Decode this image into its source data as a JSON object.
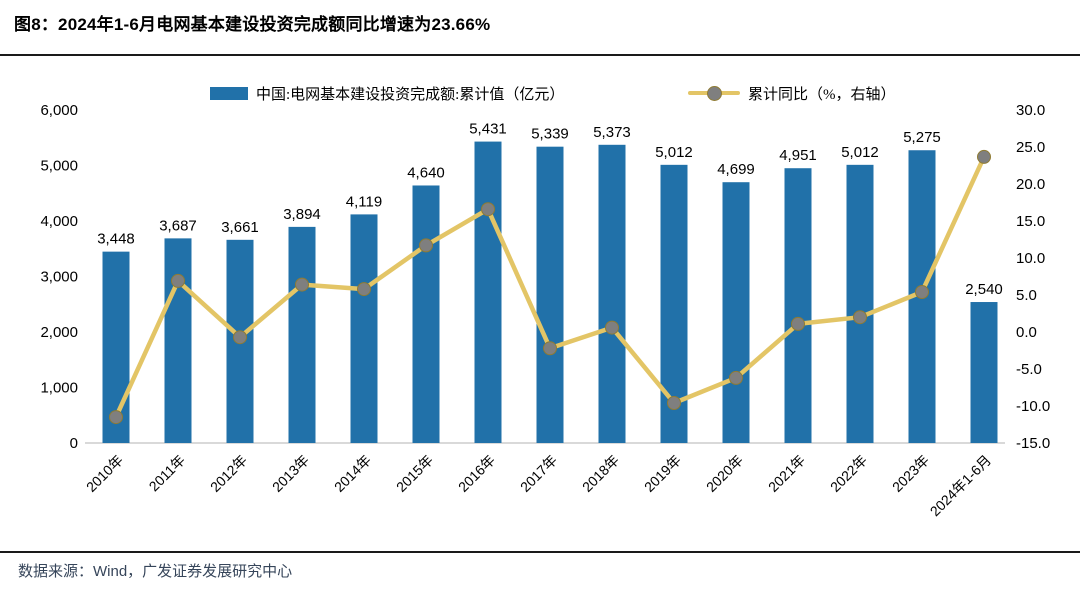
{
  "header": {
    "title": "图8：2024年1-6月电网基本建设投资完成额同比增速为23.66%"
  },
  "legend": {
    "bar_label": "中国:电网基本建设投资完成额:累计值（亿元）",
    "line_label": "累计同比（%，右轴）"
  },
  "footer": {
    "text": "数据来源：Wind，广发证券发展研究中心"
  },
  "colors": {
    "bar": "#2171A9",
    "line": "#E3C566",
    "marker_fill": "#7F7F7F",
    "marker_stroke": "#8F7B33",
    "axis_line": "#D9D9D9",
    "label_text": "#000000",
    "footer_text": "#36455A",
    "divider": "#1A1A1A"
  },
  "chart_data": {
    "type": "bar",
    "subtype": "combo-bar-line",
    "title": "2024年1-6月电网基本建设投资完成额同比增速为23.66%",
    "categories": [
      "2010年",
      "2011年",
      "2012年",
      "2013年",
      "2014年",
      "2015年",
      "2016年",
      "2017年",
      "2018年",
      "2019年",
      "2020年",
      "2021年",
      "2022年",
      "2023年",
      "2024年1-6月"
    ],
    "series": [
      {
        "name": "中国:电网基本建设投资完成额:累计值（亿元）",
        "type": "bar",
        "axis": "left",
        "color": "#2171A9",
        "values": [
          3448,
          3687,
          3661,
          3894,
          4119,
          4640,
          5431,
          5339,
          5373,
          5012,
          4699,
          4951,
          5012,
          5275,
          2540
        ]
      },
      {
        "name": "累计同比（%，右轴）",
        "type": "line",
        "axis": "right",
        "color": "#E3C566",
        "marker_color": "#7F7F7F",
        "values": [
          -11.5,
          6.9,
          -0.7,
          6.4,
          5.8,
          11.7,
          16.6,
          -2.2,
          0.6,
          -9.6,
          -6.2,
          1.1,
          2.0,
          5.4,
          23.66
        ]
      }
    ],
    "left_axis": {
      "min": 0,
      "max": 6000,
      "step": 1000
    },
    "right_axis": {
      "min": -15.0,
      "max": 30.0,
      "step": 5.0
    },
    "grid": false,
    "legend_position": "top",
    "bar_data_labels": true,
    "x_label_rotation": -45
  }
}
